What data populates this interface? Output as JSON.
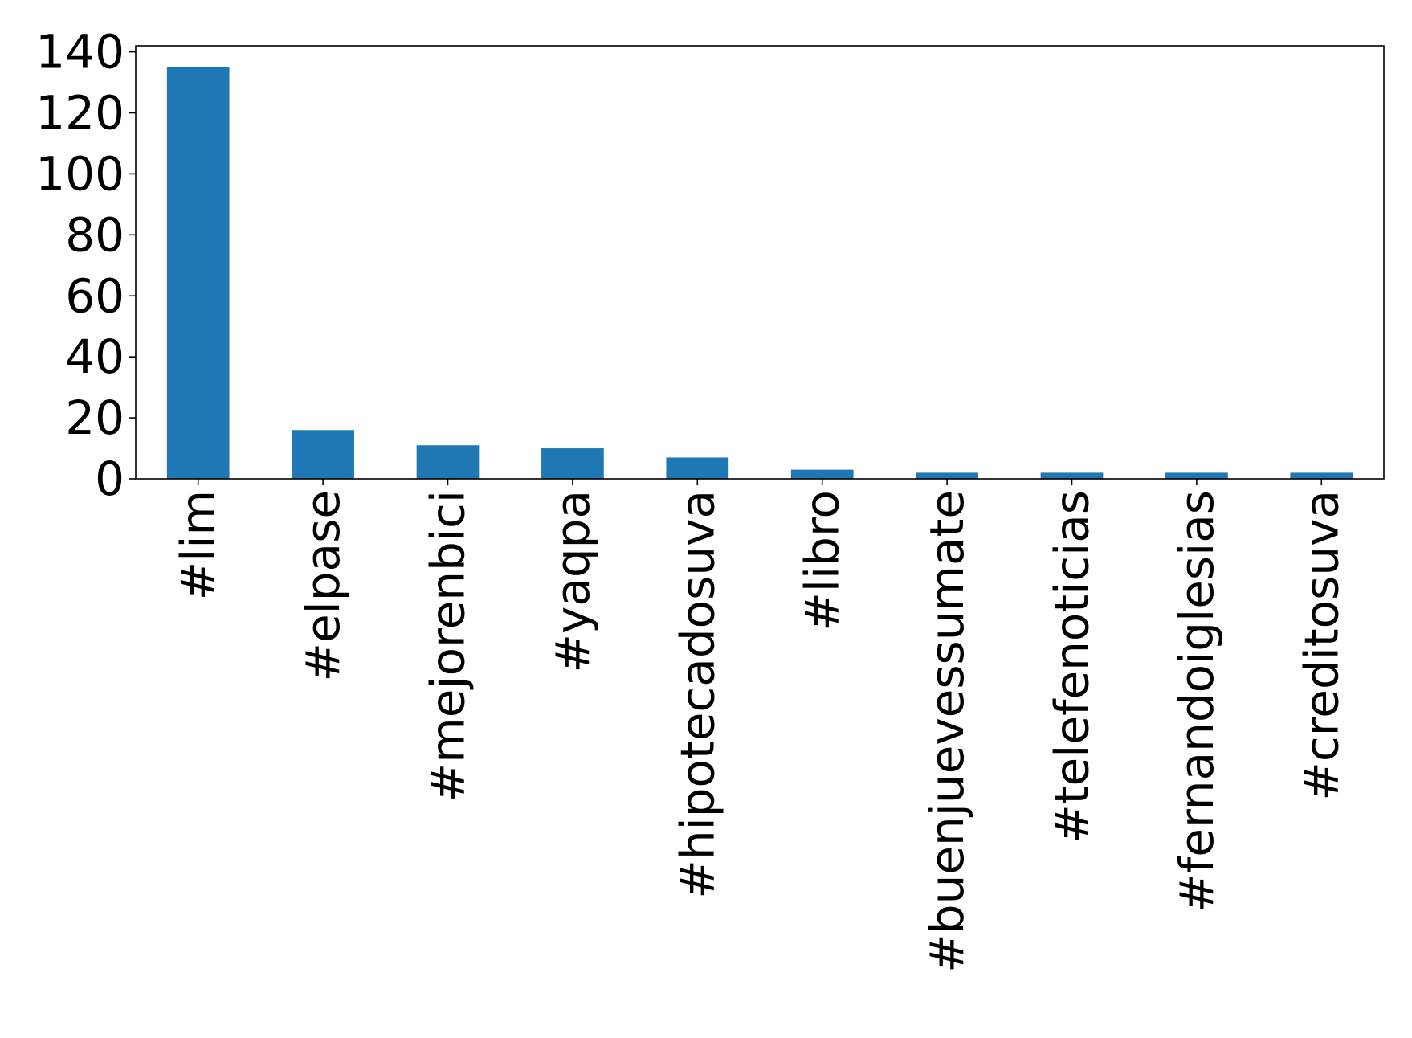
{
  "chart_data": {
    "type": "bar",
    "categories": [
      "#lim",
      "#elpase",
      "#mejorenbici",
      "#yaqpa",
      "#hipotecadosuva",
      "#libro",
      "#buenjuevessumate",
      "#telefenoticias",
      "#fernandoiglesias",
      "#creditosuva"
    ],
    "values": [
      135,
      16,
      11,
      10,
      7,
      3,
      2,
      2,
      2,
      2
    ],
    "yticks": [
      "0",
      "20",
      "40",
      "60",
      "80",
      "100",
      "120",
      "140"
    ],
    "ylim": [
      0,
      142
    ],
    "xlabel": "",
    "ylabel": "",
    "bar_color": "#1f77b4",
    "grid": false,
    "legend": "none"
  }
}
